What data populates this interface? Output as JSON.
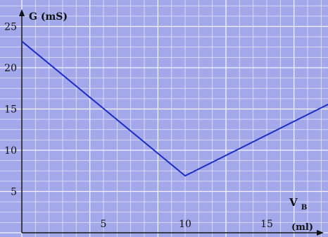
{
  "chart_data": {
    "type": "line",
    "title": "",
    "ylabel": "G (mS)",
    "xlabel": {
      "main": "V",
      "sub": "B",
      "unit": "(ml)"
    },
    "x_ticks": [
      5,
      10,
      15
    ],
    "y_ticks": [
      5,
      10,
      15,
      20,
      25
    ],
    "xlim": [
      0,
      20
    ],
    "ylim": [
      0,
      28
    ],
    "grid": true,
    "colors": {
      "background": "#a3a8ea",
      "grid_minor": "#e4e5ff",
      "grid_major": "#f4f4ff",
      "line": "#1b2fc8",
      "axis": "#111111"
    },
    "series": [
      {
        "x": [
          0,
          10,
          19
        ],
        "y": [
          23.2,
          6.9,
          15.8
        ]
      }
    ]
  }
}
